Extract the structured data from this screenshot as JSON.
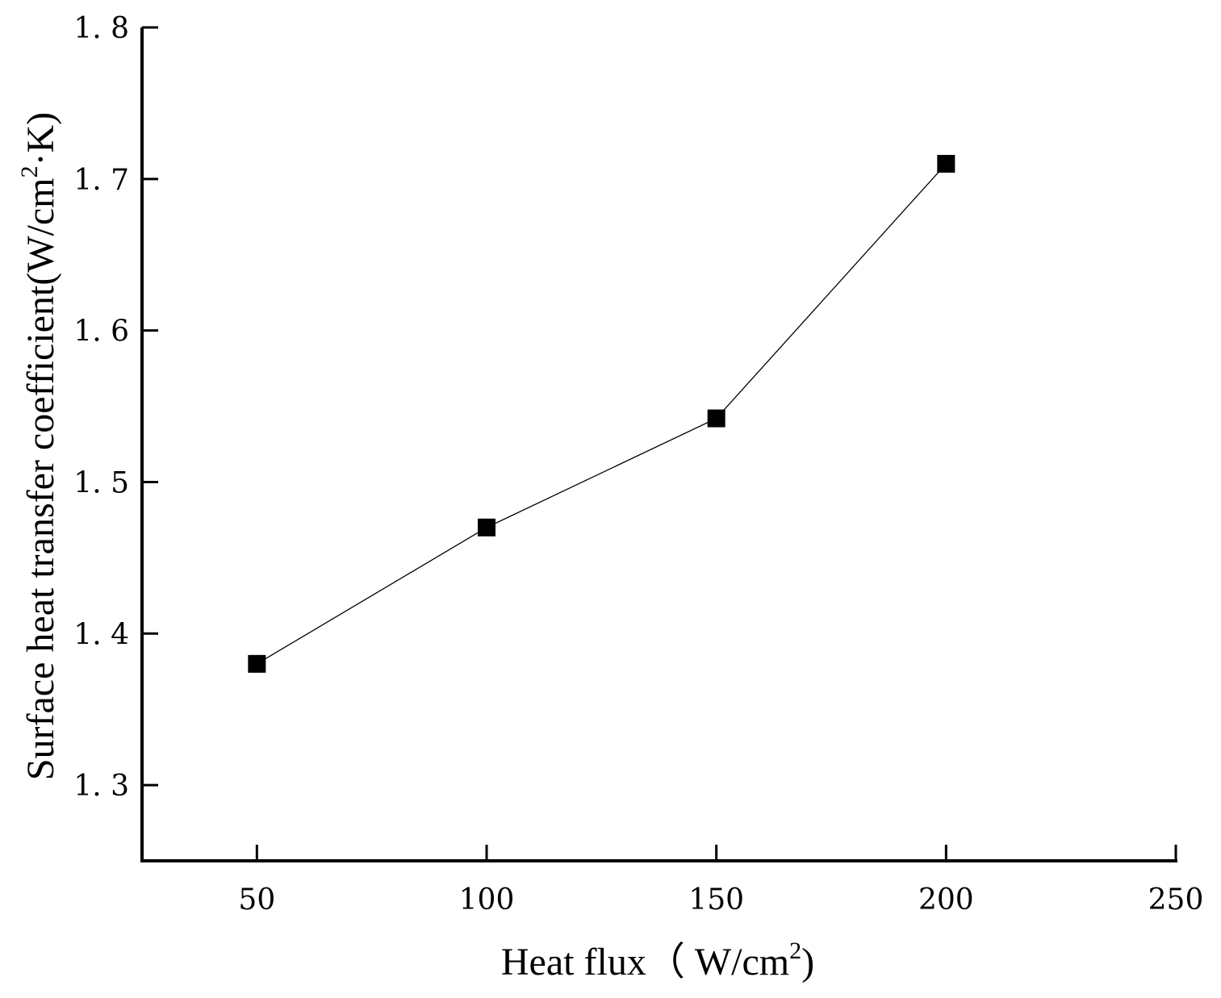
{
  "chart_data": {
    "type": "line",
    "title": "",
    "xlabel": {
      "main": "Heat flux（ W/cm",
      "sup": "2",
      "end": ")"
    },
    "ylabel": {
      "main": "Surface heat transfer coefficient(W/cm",
      "sup": "2",
      "end": "·K)"
    },
    "xlim": [
      25,
      250
    ],
    "ylim": [
      1.25,
      1.8
    ],
    "xticks": [
      50,
      100,
      150,
      200,
      250
    ],
    "xtick_labels": [
      "50",
      "100",
      "150",
      "200",
      "250"
    ],
    "yticks": [
      1.3,
      1.4,
      1.5,
      1.6,
      1.7,
      1.8
    ],
    "ytick_labels": [
      "1. 3",
      "1. 4",
      "1. 5",
      "1. 6",
      "1. 7",
      "1. 8"
    ],
    "grid": false,
    "series": [
      {
        "marker": "square",
        "color": "#000000",
        "x": [
          50,
          100,
          150,
          200
        ],
        "y": [
          1.38,
          1.47,
          1.542,
          1.71
        ]
      }
    ]
  }
}
